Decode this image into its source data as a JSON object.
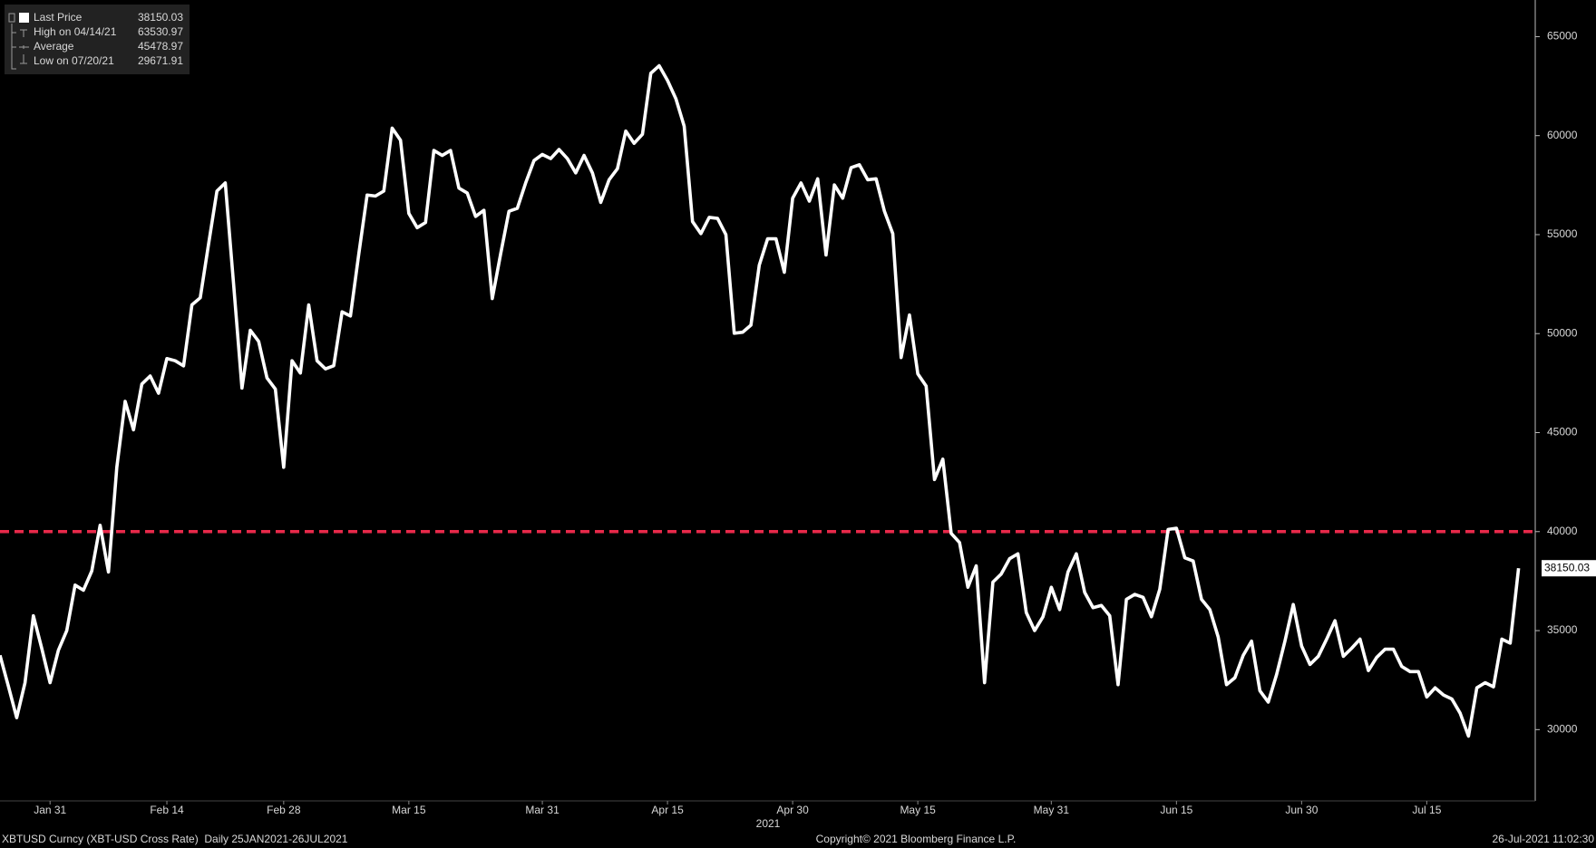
{
  "chart_data": {
    "type": "line",
    "x": [
      "2021-01-25",
      "2021-01-26",
      "2021-01-27",
      "2021-01-28",
      "2021-01-29",
      "2021-01-30",
      "2021-01-31",
      "2021-02-01",
      "2021-02-02",
      "2021-02-03",
      "2021-02-04",
      "2021-02-05",
      "2021-02-06",
      "2021-02-07",
      "2021-02-08",
      "2021-02-09",
      "2021-02-10",
      "2021-02-11",
      "2021-02-12",
      "2021-02-13",
      "2021-02-14",
      "2021-02-15",
      "2021-02-16",
      "2021-02-17",
      "2021-02-18",
      "2021-02-19",
      "2021-02-20",
      "2021-02-21",
      "2021-02-22",
      "2021-02-23",
      "2021-02-24",
      "2021-02-25",
      "2021-02-26",
      "2021-02-27",
      "2021-02-28",
      "2021-03-01",
      "2021-03-02",
      "2021-03-03",
      "2021-03-04",
      "2021-03-05",
      "2021-03-06",
      "2021-03-07",
      "2021-03-08",
      "2021-03-09",
      "2021-03-10",
      "2021-03-11",
      "2021-03-12",
      "2021-03-13",
      "2021-03-14",
      "2021-03-15",
      "2021-03-16",
      "2021-03-17",
      "2021-03-18",
      "2021-03-19",
      "2021-03-20",
      "2021-03-21",
      "2021-03-22",
      "2021-03-23",
      "2021-03-24",
      "2021-03-25",
      "2021-03-26",
      "2021-03-27",
      "2021-03-28",
      "2021-03-29",
      "2021-03-30",
      "2021-03-31",
      "2021-04-01",
      "2021-04-02",
      "2021-04-03",
      "2021-04-04",
      "2021-04-05",
      "2021-04-06",
      "2021-04-07",
      "2021-04-08",
      "2021-04-09",
      "2021-04-10",
      "2021-04-11",
      "2021-04-12",
      "2021-04-13",
      "2021-04-14",
      "2021-04-15",
      "2021-04-16",
      "2021-04-17",
      "2021-04-18",
      "2021-04-19",
      "2021-04-20",
      "2021-04-21",
      "2021-04-22",
      "2021-04-23",
      "2021-04-24",
      "2021-04-25",
      "2021-04-26",
      "2021-04-27",
      "2021-04-28",
      "2021-04-29",
      "2021-04-30",
      "2021-05-01",
      "2021-05-02",
      "2021-05-03",
      "2021-05-04",
      "2021-05-05",
      "2021-05-06",
      "2021-05-07",
      "2021-05-08",
      "2021-05-09",
      "2021-05-10",
      "2021-05-11",
      "2021-05-12",
      "2021-05-13",
      "2021-05-14",
      "2021-05-15",
      "2021-05-16",
      "2021-05-17",
      "2021-05-18",
      "2021-05-19",
      "2021-05-20",
      "2021-05-21",
      "2021-05-22",
      "2021-05-23",
      "2021-05-24",
      "2021-05-25",
      "2021-05-26",
      "2021-05-27",
      "2021-05-28",
      "2021-05-29",
      "2021-05-30",
      "2021-05-31",
      "2021-06-01",
      "2021-06-02",
      "2021-06-03",
      "2021-06-04",
      "2021-06-05",
      "2021-06-06",
      "2021-06-07",
      "2021-06-08",
      "2021-06-09",
      "2021-06-10",
      "2021-06-11",
      "2021-06-12",
      "2021-06-13",
      "2021-06-14",
      "2021-06-15",
      "2021-06-16",
      "2021-06-17",
      "2021-06-18",
      "2021-06-19",
      "2021-06-20",
      "2021-06-21",
      "2021-06-22",
      "2021-06-23",
      "2021-06-24",
      "2021-06-25",
      "2021-06-26",
      "2021-06-27",
      "2021-06-28",
      "2021-06-29",
      "2021-06-30",
      "2021-07-01",
      "2021-07-02",
      "2021-07-03",
      "2021-07-04",
      "2021-07-05",
      "2021-07-06",
      "2021-07-07",
      "2021-07-08",
      "2021-07-09",
      "2021-07-10",
      "2021-07-11",
      "2021-07-12",
      "2021-07-13",
      "2021-07-14",
      "2021-07-15",
      "2021-07-16",
      "2021-07-17",
      "2021-07-18",
      "2021-07-19",
      "2021-07-20",
      "2021-07-21",
      "2021-07-22",
      "2021-07-23",
      "2021-07-24",
      "2021-07-25",
      "2021-07-26"
    ],
    "series": [
      {
        "name": "Last Price",
        "color": "#ffffff",
        "values": [
          33753,
          32200,
          30600,
          32370,
          35750,
          34110,
          32370,
          34010,
          35000,
          37300,
          37040,
          38010,
          40320,
          37960,
          43250,
          46580,
          45140,
          47450,
          47860,
          46990,
          48740,
          48630,
          48370,
          51450,
          51810,
          54530,
          57200,
          57610,
          52480,
          47250,
          50170,
          49610,
          47760,
          47200,
          43250,
          48630,
          48010,
          51450,
          48630,
          48220,
          48380,
          51100,
          50890,
          54020,
          57000,
          56950,
          57200,
          60380,
          59770,
          56070,
          55350,
          55610,
          59250,
          59000,
          59250,
          57350,
          57100,
          55920,
          56230,
          51770,
          54020,
          56180,
          56330,
          57610,
          58740,
          59050,
          58840,
          59300,
          58840,
          58120,
          59000,
          58120,
          56630,
          57770,
          58330,
          60230,
          59610,
          60070,
          63150,
          63530.97,
          62790,
          61870,
          60480,
          55660,
          55050,
          55870,
          55820,
          55000,
          50020,
          50070,
          50430,
          53460,
          54790,
          54790,
          53100,
          56840,
          57610,
          56690,
          57820,
          53970,
          57510,
          56840,
          58380,
          58530,
          57770,
          57820,
          56180,
          55050,
          48790,
          50940,
          47970,
          47350,
          42630,
          43660,
          39910,
          39450,
          37190,
          38270,
          32370,
          37450,
          37860,
          38630,
          38880,
          35910,
          35000,
          35700,
          37190,
          36060,
          37960,
          38880,
          36930,
          36160,
          36270,
          35750,
          32270,
          36580,
          36830,
          36680,
          35700,
          37090,
          40110,
          40170,
          38680,
          38520,
          36580,
          36060,
          34680,
          32270,
          32620,
          33750,
          34470,
          31960,
          31390,
          32780,
          34470,
          36320,
          34220,
          33290,
          33700,
          34570,
          35500,
          33700,
          34110,
          34570,
          32980,
          33650,
          34060,
          34060,
          33190,
          32930,
          32930,
          31650,
          32110,
          31750,
          31550,
          30830,
          29671.91,
          32110,
          32370,
          32160,
          34570,
          34370,
          38150.03
        ]
      }
    ],
    "xlim": [
      "2021-01-25",
      "2021-07-28"
    ],
    "ylim": [
      26400,
      66850
    ],
    "xticks": [
      {
        "value": "2021-01-31",
        "label": "Jan 31"
      },
      {
        "value": "2021-02-14",
        "label": "Feb 14"
      },
      {
        "value": "2021-02-28",
        "label": "Feb 28"
      },
      {
        "value": "2021-03-15",
        "label": "Mar 15"
      },
      {
        "value": "2021-03-31",
        "label": "Mar 31"
      },
      {
        "value": "2021-04-15",
        "label": "Apr 15"
      },
      {
        "value": "2021-04-30",
        "label": "Apr 30"
      },
      {
        "value": "2021-05-15",
        "label": "May 15"
      },
      {
        "value": "2021-05-31",
        "label": "May 31"
      },
      {
        "value": "2021-06-15",
        "label": "Jun 15"
      },
      {
        "value": "2021-06-30",
        "label": "Jun 30"
      },
      {
        "value": "2021-07-15",
        "label": "Jul 15"
      }
    ],
    "yticks": [
      30000,
      35000,
      40000,
      45000,
      50000,
      55000,
      60000,
      65000
    ],
    "x_label": "2021",
    "reference_line": {
      "value": 40000,
      "color": "#e8294a"
    },
    "legend_stats": [
      {
        "label": "High on 04/14/21",
        "value": 63530.97
      },
      {
        "label": "Average",
        "value": 45478.97
      },
      {
        "label": "Low on 07/20/21",
        "value": 29671.91
      }
    ],
    "grid": false
  },
  "footer": {
    "left": "XBTUSD Curncy (XBT-USD Cross Rate)  Daily 25JAN2021-26JUL2021",
    "center": "Copyright© 2021 Bloomberg Finance L.P.",
    "right": "26-Jul-2021 11:02:30"
  }
}
